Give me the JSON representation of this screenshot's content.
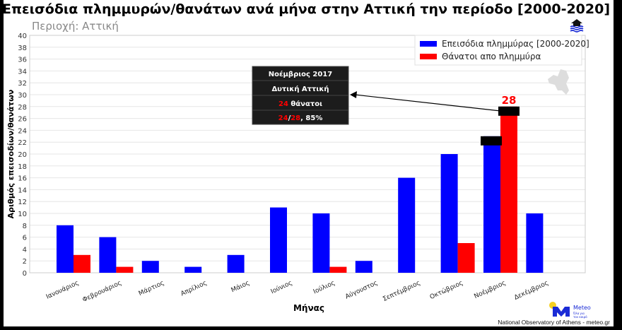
{
  "chart_data": {
    "type": "bar",
    "title": "Επεισόδια πλημμυρών/θανάτων ανά μήνα στην Αττική την περίοδο [2000-2020]",
    "subtitle": "Περιοχή: Αττική",
    "xlabel": "Μήνας",
    "ylabel": "Αριθμός επεισοδίων/θανάτων",
    "ylim": [
      0,
      40
    ],
    "yticks": [
      0,
      2,
      4,
      6,
      8,
      10,
      12,
      14,
      16,
      18,
      20,
      22,
      24,
      26,
      28,
      30,
      32,
      34,
      36,
      38,
      40
    ],
    "grid": true,
    "legend_position": "top-right",
    "categories": [
      "Ιανουάριος",
      "Φεβρουάριος",
      "Μάρτιος",
      "Απρίλιος",
      "Μάιος",
      "Ιούνιος",
      "Ιούλιος",
      "Αύγουστος",
      "Σεπτέμβριος",
      "Οκτώβριος",
      "Νοέμβριος",
      "Δεκέμβριος"
    ],
    "series": [
      {
        "name": "Επεισόδια πλημμύρας [2000-2020]",
        "color": "#0000ff",
        "values": [
          8,
          6,
          2,
          1,
          3,
          11,
          10,
          2,
          16,
          20,
          23,
          10
        ]
      },
      {
        "name": "Θάνατοι απο πλημμύρα",
        "color": "#ff0000",
        "values": [
          3,
          1,
          0,
          0,
          0,
          0,
          1,
          0,
          0,
          5,
          28,
          0
        ]
      }
    ],
    "annotations": {
      "max_label": "28"
    },
    "tooltip": {
      "line1": "Νοέμβριος 2017",
      "line2": "Δυτική Αττική",
      "line3_num": "24",
      "line3_text": " θάνατοι",
      "line4_a": "24",
      "line4_sep": "/",
      "line4_b": "28",
      "line4_rest": ", 85%"
    }
  },
  "branding": {
    "logo_text": "Meteo",
    "logo_tag1": "Όλα για",
    "logo_tag2": "τον καιρό",
    "credit": "National Observatory of Athens - meteo.gr",
    "accent": "#1a2bd6",
    "sun": "#f5d020"
  }
}
